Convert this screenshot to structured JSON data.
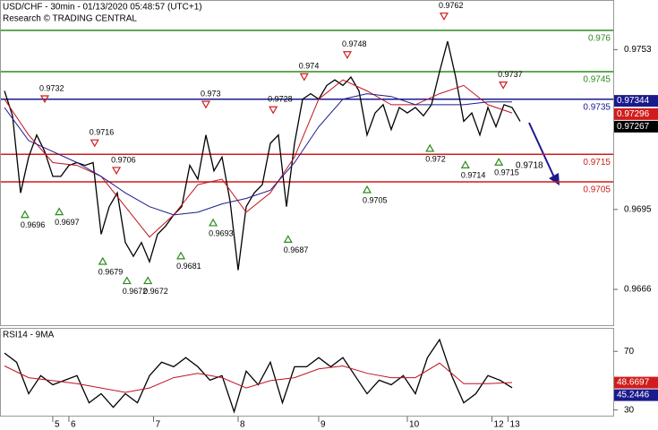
{
  "chart_data": [
    {
      "type": "line",
      "title": "USD/CHF - 30min - 01/13/2020 05:48:57 (UTC+1)",
      "subtitle": "Research © TRADING CENTRAL",
      "xlim": [
        -1.1,
        151.1
      ],
      "ylim": [
        0.9653,
        0.9771
      ],
      "yticks": [
        0.9666,
        0.9695,
        0.9753
      ],
      "series": [
        {
          "color": "#000000",
          "x": [
            0,
            2,
            4,
            6,
            8,
            10,
            12,
            14,
            16,
            18,
            20,
            22,
            24,
            26,
            28,
            30,
            32,
            34,
            36,
            38,
            40,
            42,
            44,
            46,
            48,
            50,
            52,
            54,
            56,
            58,
            60,
            62,
            64,
            66,
            68,
            70,
            72,
            74,
            76,
            78,
            80,
            82,
            84,
            86,
            88,
            90,
            92,
            94,
            96,
            98,
            100,
            102,
            104,
            106,
            108,
            110,
            112,
            114,
            116,
            118,
            120,
            122,
            124,
            126,
            128
          ],
          "values": [
            0.9738,
            0.9729,
            0.9701,
            0.9714,
            0.9722,
            0.9716,
            0.9707,
            0.9707,
            0.9711,
            0.9712,
            0.9711,
            0.9712,
            0.9686,
            0.9696,
            0.9701,
            0.9683,
            0.9678,
            0.9683,
            0.9676,
            0.9686,
            0.9689,
            0.9693,
            0.9696,
            0.9711,
            0.9706,
            0.9722,
            0.9709,
            0.9714,
            0.9698,
            0.9673,
            0.9696,
            0.9701,
            0.9704,
            0.9719,
            0.9722,
            0.9696,
            0.9719,
            0.9735,
            0.9737,
            0.9735,
            0.974,
            0.9742,
            0.974,
            0.9743,
            0.9738,
            0.9722,
            0.973,
            0.9733,
            0.9724,
            0.9732,
            0.973,
            0.9732,
            0.9729,
            0.9733,
            0.9745,
            0.9756,
            0.9743,
            0.9727,
            0.973,
            0.9722,
            0.9732,
            0.9725,
            0.9733,
            0.9732,
            0.9727
          ]
        },
        {
          "color": "#c0141e",
          "x": [
            0,
            6,
            12,
            18,
            24,
            30,
            36,
            42,
            48,
            54,
            60,
            66,
            72,
            78,
            84,
            90,
            96,
            102,
            108,
            114,
            120,
            126
          ],
          "values": [
            0.9735,
            0.9722,
            0.9712,
            0.9711,
            0.9707,
            0.9696,
            0.9685,
            0.9693,
            0.9704,
            0.9706,
            0.9694,
            0.9701,
            0.9714,
            0.9735,
            0.9742,
            0.9738,
            0.9733,
            0.9733,
            0.9737,
            0.974,
            0.9733,
            0.973
          ]
        },
        {
          "color": "#1a1a8c",
          "x": [
            0,
            6,
            12,
            18,
            24,
            30,
            36,
            42,
            48,
            54,
            60,
            66,
            72,
            78,
            84,
            90,
            96,
            102,
            108,
            114,
            120,
            126
          ],
          "values": [
            0.9732,
            0.972,
            0.9716,
            0.9712,
            0.9707,
            0.9701,
            0.9696,
            0.9693,
            0.9694,
            0.9697,
            0.9699,
            0.9702,
            0.9712,
            0.9725,
            0.9735,
            0.9737,
            0.9736,
            0.9733,
            0.9733,
            0.9733,
            0.9734,
            0.9734
          ]
        }
      ],
      "levels": [
        {
          "value": 0.976,
          "color": "#2e8b1e"
        },
        {
          "value": 0.9745,
          "color": "#2e8b1e"
        },
        {
          "value": 0.9735,
          "color": "#1a1a8c"
        },
        {
          "value": 0.9715,
          "color": "#d01c1c"
        },
        {
          "value": 0.9705,
          "color": "#d01c1c"
        }
      ],
      "annotations": [
        {
          "x": 10,
          "value": 0.9732,
          "dir": "down"
        },
        {
          "x": 22.4,
          "value": 0.9716,
          "dir": "down"
        },
        {
          "x": 27.8,
          "value": 0.9706,
          "dir": "down"
        },
        {
          "x": 50,
          "value": 0.973,
          "dir": "down"
        },
        {
          "x": 66.7,
          "value": 0.9728,
          "dir": "down"
        },
        {
          "x": 74.4,
          "value": 0.974,
          "dir": "down"
        },
        {
          "x": 85.1,
          "value": 0.9748,
          "dir": "down"
        },
        {
          "x": 109.1,
          "value": 0.9762,
          "dir": "down"
        },
        {
          "x": 123.8,
          "value": 0.9737,
          "dir": "down"
        },
        {
          "x": 5.1,
          "value": 0.9696,
          "dir": "up"
        },
        {
          "x": 13.6,
          "value": 0.9697,
          "dir": "up"
        },
        {
          "x": 24.4,
          "value": 0.9679,
          "dir": "up"
        },
        {
          "x": 30.4,
          "value": 0.9672,
          "dir": "up"
        },
        {
          "x": 35.6,
          "value": 0.9672,
          "dir": "up"
        },
        {
          "x": 43.8,
          "value": 0.9681,
          "dir": "up"
        },
        {
          "x": 51.8,
          "value": 0.9693,
          "dir": "up"
        },
        {
          "x": 70.4,
          "value": 0.9687,
          "dir": "up"
        },
        {
          "x": 90,
          "value": 0.9705,
          "dir": "up"
        },
        {
          "x": 105.6,
          "value": 0.972,
          "dir": "up"
        },
        {
          "x": 114.4,
          "value": 0.9714,
          "dir": "up"
        },
        {
          "x": 122.7,
          "value": 0.9715,
          "dir": "up"
        }
      ],
      "target": 0.9718,
      "last_values": [
        {
          "value": 0.97344,
          "color": "#1a1a8c"
        },
        {
          "value": 0.97296,
          "color": "#d01c1c"
        },
        {
          "value": 0.97267,
          "color": "#000000"
        }
      ]
    },
    {
      "type": "line",
      "title": "RSI14 - 9MA",
      "xlim": [
        -1.1,
        151.1
      ],
      "ylim": [
        25.5,
        86
      ],
      "yticks": [
        30,
        70
      ],
      "xticks": [
        {
          "value": 12,
          "label": "5"
        },
        {
          "value": 16,
          "label": "6"
        },
        {
          "value": 37,
          "label": "7"
        },
        {
          "value": 58,
          "label": "8"
        },
        {
          "value": 78,
          "label": "9"
        },
        {
          "value": 100,
          "label": "10"
        },
        {
          "value": 121,
          "label": "12"
        },
        {
          "value": 125,
          "label": "13"
        }
      ],
      "series": [
        {
          "color": "#000000",
          "x": [
            0,
            3,
            6,
            9,
            12,
            15,
            18,
            21,
            24,
            27,
            30,
            33,
            36,
            39,
            42,
            45,
            48,
            51,
            54,
            57,
            60,
            63,
            66,
            69,
            72,
            75,
            78,
            81,
            84,
            87,
            90,
            93,
            96,
            99,
            102,
            105,
            108,
            111,
            114,
            117,
            120,
            123,
            126
          ],
          "values": [
            68.8,
            62.6,
            41.1,
            53.4,
            47.2,
            50.3,
            53.4,
            34.9,
            41.1,
            31.8,
            41.1,
            34.9,
            53.4,
            62.6,
            59.5,
            65.7,
            59.5,
            50.3,
            53.4,
            28.8,
            56.5,
            47.2,
            62.6,
            34.9,
            59.5,
            59.5,
            65.7,
            59.5,
            65.7,
            53.4,
            41.1,
            50.3,
            47.2,
            53.4,
            41.1,
            65.7,
            78,
            53.4,
            34.9,
            41.1,
            53.4,
            50.3,
            45.2
          ]
        },
        {
          "color": "#c0141e",
          "x": [
            0,
            6,
            12,
            18,
            24,
            30,
            36,
            42,
            48,
            54,
            60,
            66,
            72,
            78,
            84,
            90,
            96,
            102,
            108,
            114,
            120,
            126
          ],
          "values": [
            60,
            52,
            50,
            48,
            45,
            42,
            45,
            52,
            55,
            52,
            45,
            50,
            52,
            58,
            60,
            55,
            52,
            52,
            62,
            48,
            48,
            48.7
          ]
        }
      ],
      "last_values": [
        {
          "value": 48.6697,
          "color": "#d01c1c"
        },
        {
          "value": 45.2446,
          "color": "#1a1a8c"
        }
      ]
    }
  ]
}
